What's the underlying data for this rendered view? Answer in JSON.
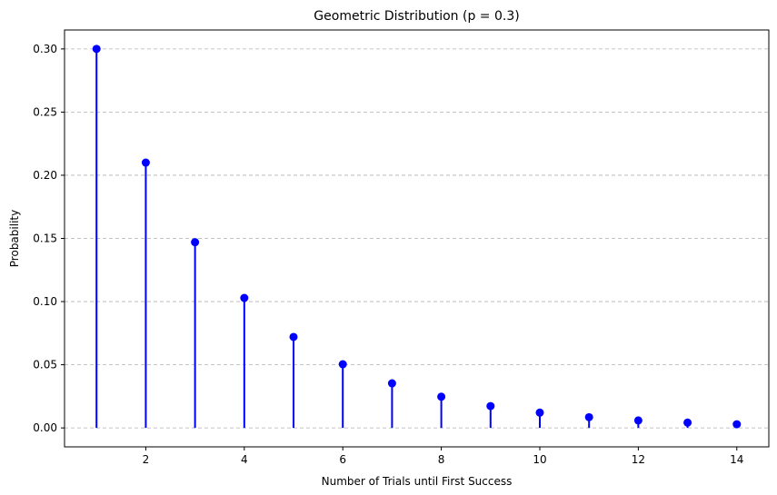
{
  "chart_data": {
    "type": "stem",
    "title": "Geometric Distribution (p = 0.3)",
    "xlabel": "Number of Trials until First Success",
    "ylabel": "Probability",
    "x": [
      1,
      2,
      3,
      4,
      5,
      6,
      7,
      8,
      9,
      10,
      11,
      12,
      13,
      14
    ],
    "values": [
      0.3,
      0.21,
      0.147,
      0.1029,
      0.072,
      0.0504,
      0.0353,
      0.0247,
      0.0173,
      0.0121,
      0.0085,
      0.0059,
      0.0042,
      0.0029
    ],
    "xlim": [
      0.35,
      14.65
    ],
    "ylim": [
      -0.015,
      0.315
    ],
    "xticks": [
      2,
      4,
      6,
      8,
      10,
      12,
      14
    ],
    "yticks": [
      0.0,
      0.05,
      0.1,
      0.15,
      0.2,
      0.25,
      0.3
    ],
    "xtick_labels": [
      "2",
      "4",
      "6",
      "8",
      "10",
      "12",
      "14"
    ],
    "ytick_labels": [
      "0.00",
      "0.05",
      "0.10",
      "0.15",
      "0.20",
      "0.25",
      "0.30"
    ],
    "grid": "y-dashed",
    "color": "#0000ff"
  }
}
